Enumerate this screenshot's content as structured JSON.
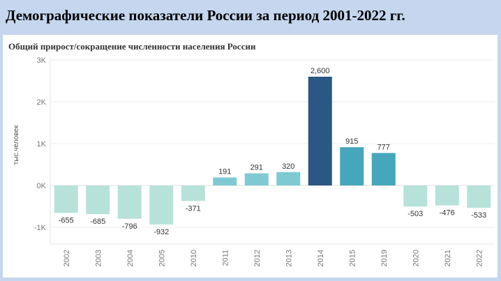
{
  "header": {
    "title": "Демографические показатели России за период 2001-2022 гг."
  },
  "chart_data": {
    "type": "bar",
    "title": "Общий прирост/сокращение численности населения России",
    "ylabel": "тыс.человек",
    "xlabel": "",
    "ylim": [
      -1400,
      3000
    ],
    "yticks": [
      3000,
      2000,
      1000,
      0,
      -1000
    ],
    "ytick_labels": [
      "3K",
      "2K",
      "1K",
      "0K",
      "-1K"
    ],
    "categories": [
      "2002",
      "2003",
      "2004",
      "2005",
      "2010",
      "2011",
      "2012",
      "2013",
      "2014",
      "2015",
      "2019",
      "2020",
      "2021",
      "2022"
    ],
    "values": [
      -655,
      -685,
      -796,
      -932,
      -371,
      191,
      291,
      320,
      2600,
      915,
      777,
      -503,
      -476,
      -533
    ],
    "value_labels": [
      "-655",
      "-685",
      "-796",
      "-932",
      "-371",
      "191",
      "291",
      "320",
      "2,600",
      "915",
      "777",
      "-503",
      "-476",
      "-533"
    ],
    "grid": true,
    "colors": {
      "low": "#b7e2da",
      "mid": "#7ecad2",
      "high": "#46a6bb",
      "max": "#2a5783"
    }
  }
}
